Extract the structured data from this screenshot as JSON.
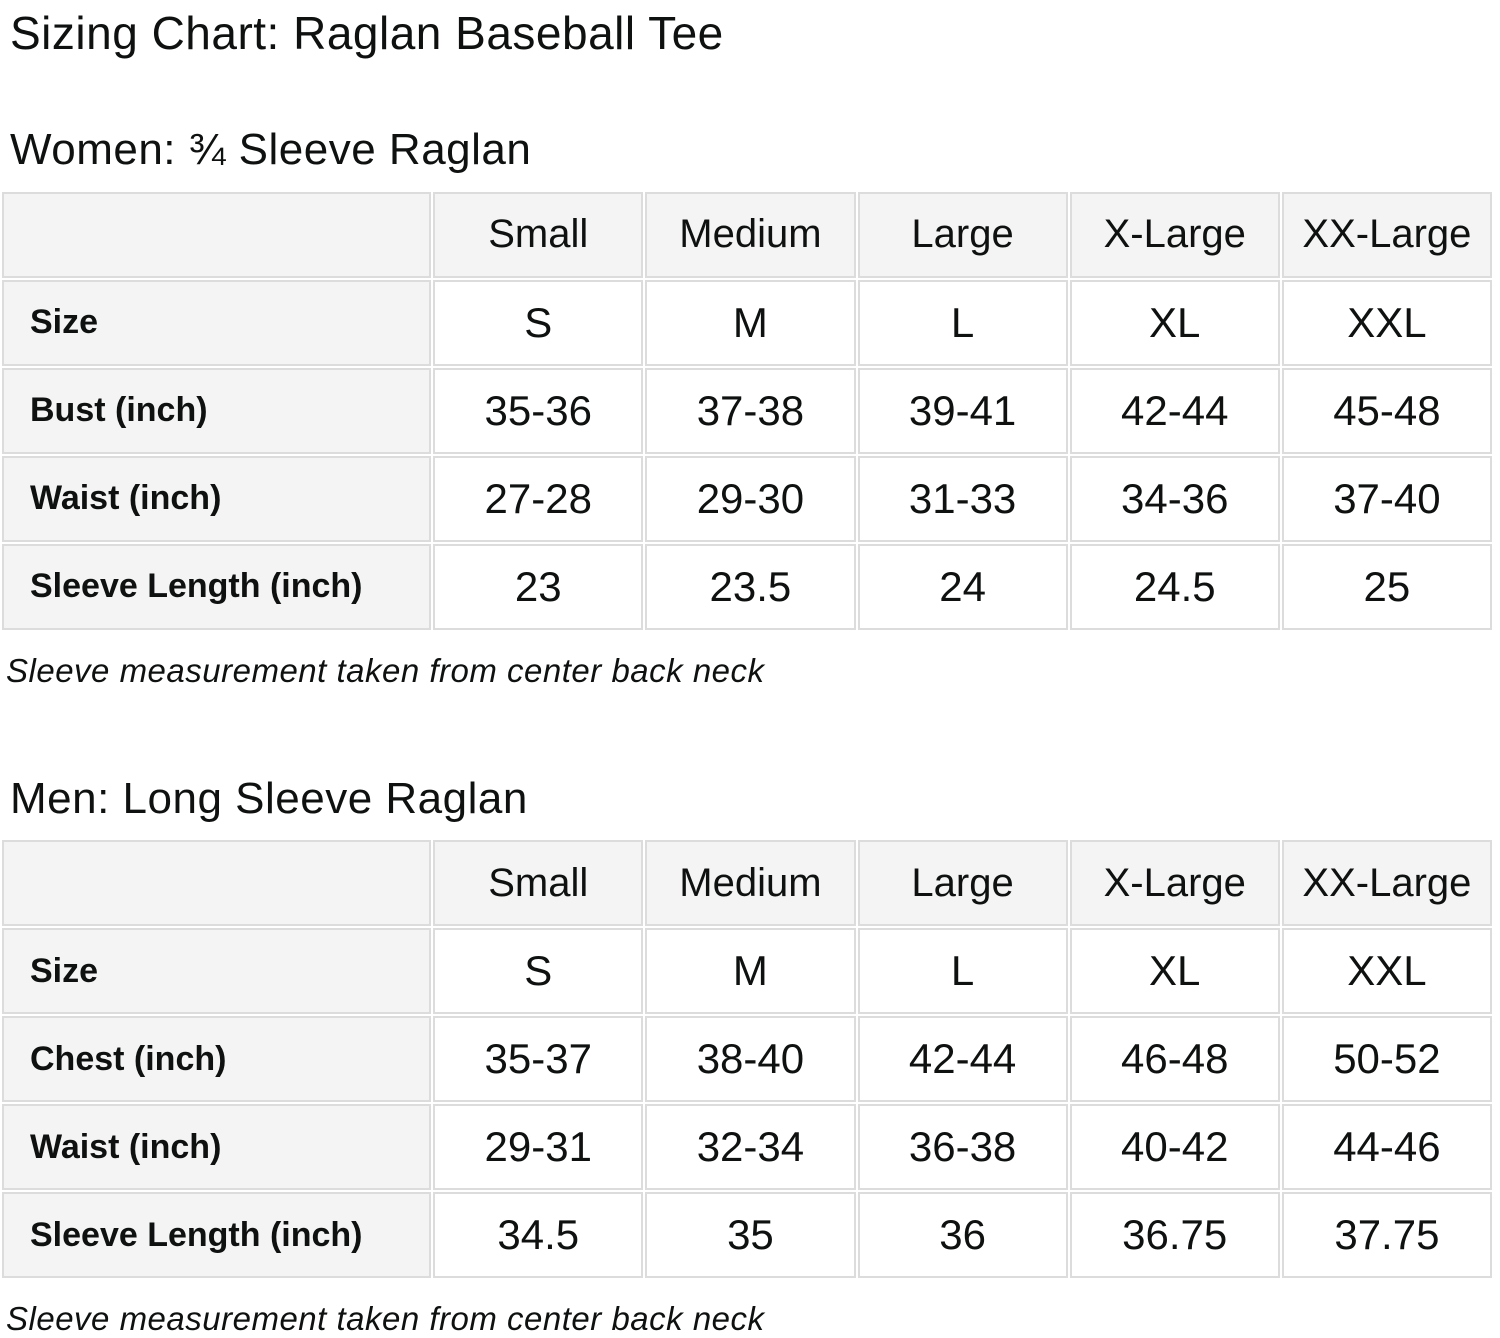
{
  "title": "Sizing Chart: Raglan Baseball Tee",
  "colors": {
    "text": "#0f1111",
    "page_bg": "#ffffff",
    "header_cell_bg": "#f4f4f5",
    "data_cell_bg": "#ffffff",
    "table_border": "#dcdcdc"
  },
  "sections": [
    {
      "heading": "Women: ¾ Sleeve Raglan",
      "note": "Sleeve measurement taken from center back neck",
      "table": {
        "columns": [
          "",
          "Small",
          "Medium",
          "Large",
          "X-Large",
          "XX-Large"
        ],
        "rows": [
          {
            "label": "Size",
            "values": [
              "S",
              "M",
              "L",
              "XL",
              "XXL"
            ]
          },
          {
            "label": "Bust (inch)",
            "values": [
              "35-36",
              "37-38",
              "39-41",
              "42-44",
              "45-48"
            ]
          },
          {
            "label": "Waist (inch)",
            "values": [
              "27-28",
              "29-30",
              "31-33",
              "34-36",
              "37-40"
            ]
          },
          {
            "label": "Sleeve Length (inch)",
            "values": [
              "23",
              "23.5",
              "24",
              "24.5",
              "25"
            ]
          }
        ]
      }
    },
    {
      "heading": "Men: Long Sleeve Raglan",
      "note": "Sleeve measurement taken from center back neck",
      "table": {
        "columns": [
          "",
          "Small",
          "Medium",
          "Large",
          "X-Large",
          "XX-Large"
        ],
        "rows": [
          {
            "label": "Size",
            "values": [
              "S",
              "M",
              "L",
              "XL",
              "XXL"
            ]
          },
          {
            "label": "Chest (inch)",
            "values": [
              "35-37",
              "38-40",
              "42-44",
              "46-48",
              "50-52"
            ]
          },
          {
            "label": "Waist (inch)",
            "values": [
              "29-31",
              "32-34",
              "36-38",
              "40-42",
              "44-46"
            ]
          },
          {
            "label": "Sleeve Length (inch)",
            "values": [
              "34.5",
              "35",
              "36",
              "36.75",
              "37.75"
            ]
          }
        ]
      }
    }
  ]
}
